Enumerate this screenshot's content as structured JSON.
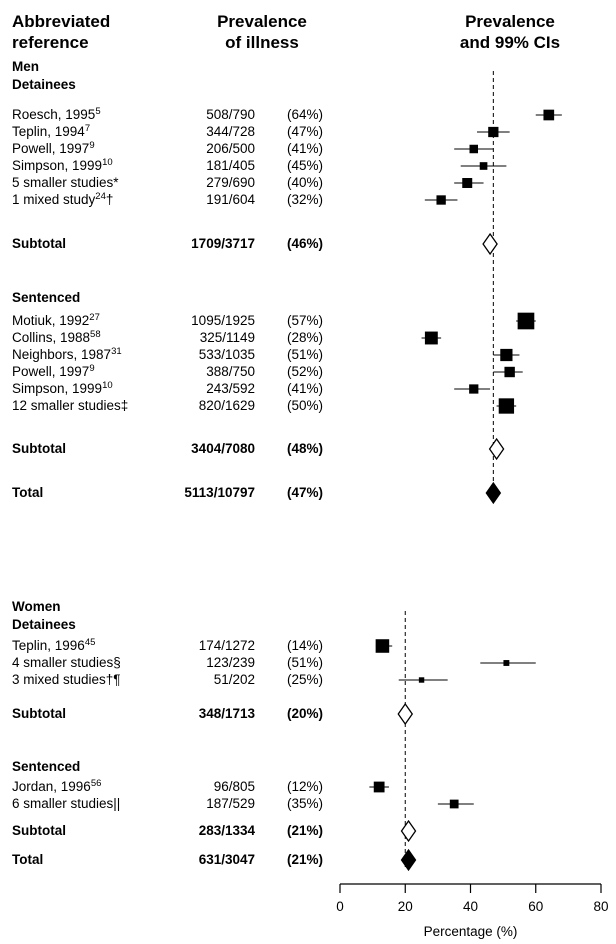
{
  "headers": {
    "reference": [
      "Abbreviated",
      "reference"
    ],
    "prevalence": [
      "Prevalence",
      "of illness"
    ],
    "ci": [
      "Prevalence",
      "and 99% CIs"
    ]
  },
  "chart_data": {
    "type": "forest",
    "xlabel": "Percentage (%)",
    "xlim": [
      0,
      80
    ],
    "xticks": [
      0,
      20,
      40,
      60,
      80
    ],
    "groups": [
      {
        "name": "Men",
        "reference_line": 47,
        "subgroups": [
          {
            "name": "Detainees",
            "studies": [
              {
                "ref": "Roesch, 1995",
                "sup": "5",
                "suffix": "",
                "ratio": "508/790",
                "pct": "(64%)",
                "value": 64,
                "ci": [
                  60,
                  68
                ]
              },
              {
                "ref": "Teplin, 1994",
                "sup": "7",
                "suffix": "",
                "ratio": "344/728",
                "pct": "(47%)",
                "value": 47,
                "ci": [
                  42,
                  52
                ]
              },
              {
                "ref": "Powell, 1997",
                "sup": "9",
                "suffix": "",
                "ratio": "206/500",
                "pct": "(41%)",
                "value": 41,
                "ci": [
                  35,
                  47
                ]
              },
              {
                "ref": "Simpson, 1999",
                "sup": "10",
                "suffix": "",
                "ratio": "181/405",
                "pct": "(45%)",
                "value": 44,
                "ci": [
                  37,
                  51
                ]
              },
              {
                "ref": "5 smaller studies*",
                "sup": "",
                "suffix": "",
                "ratio": "279/690",
                "pct": "(40%)",
                "value": 39,
                "ci": [
                  35,
                  44
                ]
              },
              {
                "ref": "1 mixed study",
                "sup": "24",
                "suffix": "†",
                "ratio": "191/604",
                "pct": "(32%)",
                "value": 31,
                "ci": [
                  26,
                  36
                ]
              }
            ],
            "subtotal": {
              "label": "Subtotal",
              "ratio": "1709/3717",
              "pct": "(46%)",
              "value": 46,
              "ci": [
                44,
                48
              ]
            }
          },
          {
            "name": "Sentenced",
            "studies": [
              {
                "ref": "Motiuk, 1992",
                "sup": "27",
                "suffix": "",
                "ratio": "1095/1925",
                "pct": "(57%)",
                "value": 57,
                "ci": [
                  54,
                  60
                ]
              },
              {
                "ref": "Collins, 1988",
                "sup": "58",
                "suffix": "",
                "ratio": "325/1149",
                "pct": "(28%)",
                "value": 28,
                "ci": [
                  25,
                  31
                ]
              },
              {
                "ref": "Neighbors, 1987",
                "sup": "31",
                "suffix": "",
                "ratio": "533/1035",
                "pct": "(51%)",
                "value": 51,
                "ci": [
                  47,
                  55
                ]
              },
              {
                "ref": "Powell, 1997",
                "sup": "9",
                "suffix": "",
                "ratio": "388/750",
                "pct": "(52%)",
                "value": 52,
                "ci": [
                  47,
                  56
                ]
              },
              {
                "ref": "Simpson, 1999",
                "sup": "10",
                "suffix": "",
                "ratio": "243/592",
                "pct": "(41%)",
                "value": 41,
                "ci": [
                  35,
                  46
                ]
              },
              {
                "ref": "12 smaller studies‡",
                "sup": "",
                "suffix": "",
                "ratio": "820/1629",
                "pct": "(50%)",
                "value": 51,
                "ci": [
                  48,
                  54
                ]
              }
            ],
            "subtotal": {
              "label": "Subtotal",
              "ratio": "3404/7080",
              "pct": "(48%)",
              "value": 48,
              "ci": [
                46,
                49
              ]
            }
          }
        ],
        "total": {
          "label": "Total",
          "ratio": "5113/10797",
          "pct": "(47%)",
          "value": 47,
          "ci": [
            46,
            48
          ]
        }
      },
      {
        "name": "Women",
        "reference_line": 20,
        "subgroups": [
          {
            "name": "Detainees",
            "studies": [
              {
                "ref": "Teplin, 1996",
                "sup": "45",
                "suffix": "",
                "ratio": "174/1272",
                "pct": "(14%)",
                "value": 13,
                "ci": [
                  11,
                  16
                ]
              },
              {
                "ref": "4 smaller studies§",
                "sup": "",
                "suffix": "",
                "ratio": "123/239",
                "pct": "(51%)",
                "value": 51,
                "ci": [
                  43,
                  60
                ]
              },
              {
                "ref": "3 mixed studies†¶",
                "sup": "",
                "suffix": "",
                "ratio": "51/202",
                "pct": "(25%)",
                "value": 25,
                "ci": [
                  18,
                  33
                ]
              }
            ],
            "subtotal": {
              "label": "Subtotal",
              "ratio": "348/1713",
              "pct": "(20%)",
              "value": 20,
              "ci": [
                18,
                22
              ]
            }
          },
          {
            "name": "Sentenced",
            "studies": [
              {
                "ref": "Jordan, 1996",
                "sup": "56",
                "suffix": "",
                "ratio": "96/805",
                "pct": "(12%)",
                "value": 12,
                "ci": [
                  9,
                  15
                ]
              },
              {
                "ref": "6 smaller studies||",
                "sup": "",
                "suffix": "",
                "ratio": "187/529",
                "pct": "(35%)",
                "value": 35,
                "ci": [
                  30,
                  41
                ]
              }
            ],
            "subtotal": {
              "label": "Subtotal",
              "ratio": "283/1334",
              "pct": "(21%)",
              "value": 21,
              "ci": [
                18,
                23
              ]
            }
          }
        ],
        "total": {
          "label": "Total",
          "ratio": "631/3047",
          "pct": "(21%)",
          "value": 21,
          "ci": [
            19,
            22
          ]
        }
      }
    ]
  }
}
